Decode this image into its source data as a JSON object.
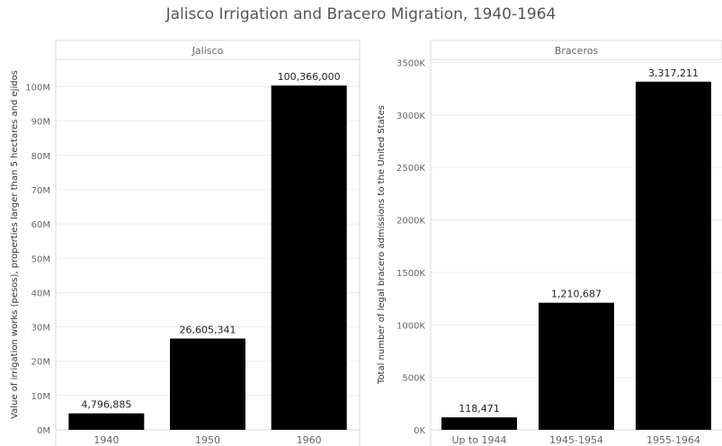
{
  "title": "Jalisco Irrigation and Bracero Migration, 1940-1964",
  "chart_data": [
    {
      "type": "bar",
      "panel_title": "Jalisco",
      "categories": [
        "1940",
        "1950",
        "1960"
      ],
      "values": [
        4796885,
        26605341,
        100366000
      ],
      "data_labels": [
        "4,796,885",
        "26,605,341",
        "100,366,000"
      ],
      "ylabel": "Value of irrigation works (pesos), properties larger than 5 hectares and ejidos",
      "ylim": [
        0,
        108000000
      ],
      "yticks": [
        0,
        10000000,
        20000000,
        30000000,
        40000000,
        50000000,
        60000000,
        70000000,
        80000000,
        90000000,
        100000000
      ],
      "ytick_labels": [
        "0M",
        "10M",
        "20M",
        "30M",
        "40M",
        "50M",
        "60M",
        "70M",
        "80M",
        "90M",
        "100M"
      ],
      "bar_color": "#000000",
      "grid": true
    },
    {
      "type": "bar",
      "panel_title": "Braceros",
      "categories": [
        "Up to 1944",
        "1945-1954",
        "1955-1964"
      ],
      "values": [
        118471,
        1210687,
        3317211
      ],
      "data_labels": [
        "118,471",
        "1,210,687",
        "3,317,211"
      ],
      "ylabel": "Total number of legal bracero admissions to the United States",
      "ylim": [
        0,
        3530000
      ],
      "yticks": [
        0,
        500000,
        1000000,
        1500000,
        2000000,
        2500000,
        3000000,
        3500000
      ],
      "ytick_labels": [
        "0K",
        "500K",
        "1000K",
        "1500K",
        "2000K",
        "2500K",
        "3000K",
        "3500K"
      ],
      "bar_color": "#000000",
      "grid": true
    }
  ]
}
